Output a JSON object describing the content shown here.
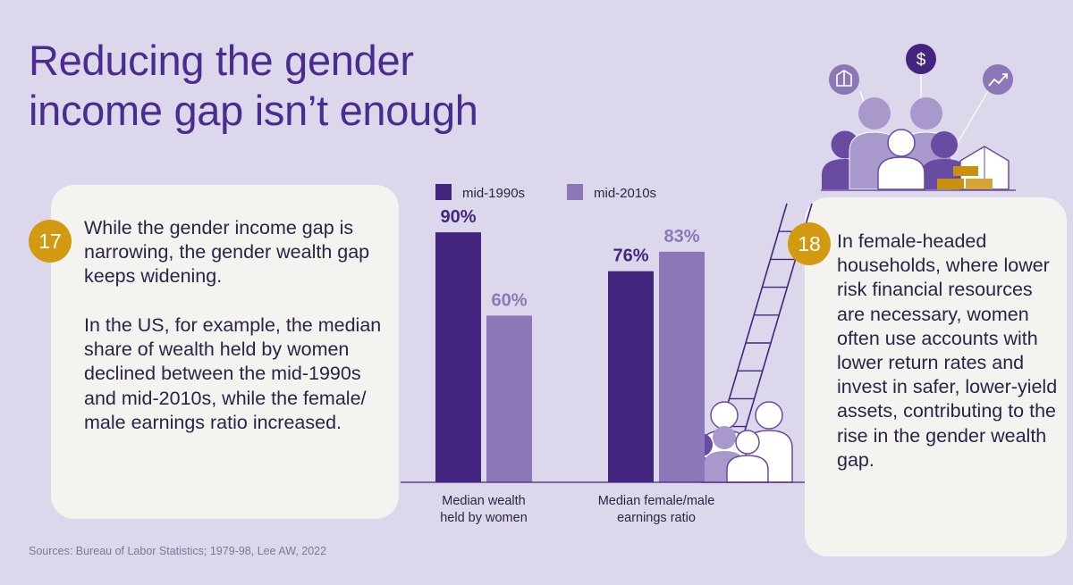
{
  "title_lines": [
    "Reducing the gender",
    "income gap isn’t enough"
  ],
  "card_17": {
    "number": "17",
    "paragraph_1": "While the gender income gap is narrowing, the gender wealth gap keeps widening.",
    "paragraph_2": "In the US, for example, the median share of wealth held by women declined between the mid-1990s and mid-2010s, while the female/ male earnings ratio increased."
  },
  "card_18": {
    "number": "18",
    "paragraph": "In female-headed households, where lower risk financial resources are necessary, women often use accounts with lower return rates and invest in safer, lower-yield assets, contributing to the rise in the gender wealth gap."
  },
  "source": "Sources: Bureau of Labor Statistics; 1979-98, Lee AW, 2022",
  "icons": [
    "box-icon",
    "dollar-icon",
    "trend-up-icon"
  ],
  "colors": {
    "background": "#ddd7ec",
    "title": "#4a2c90",
    "dark_purple": "#43257f",
    "light_purple": "#8c78b9",
    "badge": "#d19a10",
    "card": "#f4f3ef"
  },
  "chart_data": {
    "type": "bar",
    "categories": [
      "Median wealth held by women",
      "Median female/male earnings ratio"
    ],
    "category_label_lines": [
      [
        "Median wealth",
        "held by women"
      ],
      [
        "Median female/male",
        "earnings ratio"
      ]
    ],
    "series": [
      {
        "name": "mid-1990s",
        "values": [
          90,
          76
        ],
        "labels": [
          "90%",
          "76%"
        ],
        "color": "#43257f"
      },
      {
        "name": "mid-2010s",
        "values": [
          60,
          83
        ],
        "labels": [
          "60%",
          "83%"
        ],
        "color": "#8c78b9"
      }
    ],
    "ylim": [
      0,
      100
    ],
    "grid": false,
    "legend": "top-left"
  }
}
